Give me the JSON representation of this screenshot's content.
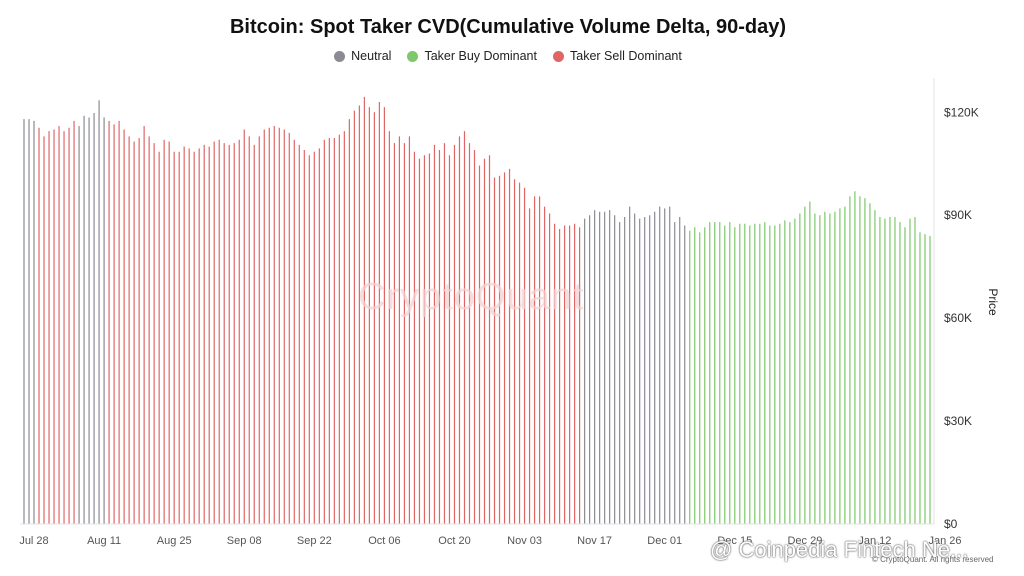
{
  "chart_data": {
    "type": "bar",
    "title": "Bitcoin: Spot Taker CVD(Cumulative Volume Delta, 90-day)",
    "ylabel": "Price",
    "ylim": [
      0,
      130000
    ],
    "y_ticks": [
      {
        "value": 0,
        "label": "$0"
      },
      {
        "value": 30000,
        "label": "$30K"
      },
      {
        "value": 60000,
        "label": "$60K"
      },
      {
        "value": 90000,
        "label": "$90K"
      },
      {
        "value": 120000,
        "label": "$120K"
      }
    ],
    "start_date": "2025-07-26",
    "x_ticks": [
      "Jul 28",
      "Aug 11",
      "Aug 25",
      "Sep 08",
      "Sep 22",
      "Oct 06",
      "Oct 20",
      "Nov 03",
      "Nov 17",
      "Dec 01",
      "Dec 15",
      "Dec 29",
      "Jan 12",
      "Jan 26"
    ],
    "x_tick_dates": [
      "2025-07-28",
      "2025-08-11",
      "2025-08-25",
      "2025-09-08",
      "2025-09-22",
      "2025-10-06",
      "2025-10-20",
      "2025-11-03",
      "2025-11-17",
      "2025-12-01",
      "2025-12-15",
      "2025-12-29",
      "2026-01-12",
      "2026-01-26"
    ],
    "legend": [
      {
        "name": "Neutral",
        "color": "#8b8b93"
      },
      {
        "name": "Taker Buy Dominant",
        "color": "#7cc86a"
      },
      {
        "name": "Taker Sell Dominant",
        "color": "#e06666"
      }
    ],
    "legend_position": "top-center",
    "grid": false,
    "segments": [
      {
        "state": "Neutral",
        "color": "#8b8b93",
        "values": [
          118000,
          118000,
          117500
        ]
      },
      {
        "state": "Taker Sell Dominant",
        "color": "#e06666",
        "values": [
          115500,
          113000,
          114500,
          115000,
          116000,
          114500,
          115500,
          117500
        ]
      },
      {
        "state": "Neutral",
        "color": "#8b8b93",
        "values": [
          116000,
          119000,
          118500,
          119800,
          123500,
          118500
        ]
      },
      {
        "state": "Taker Sell Dominant",
        "color": "#e06666",
        "values": [
          117500,
          116500,
          117500,
          115000,
          113000,
          111500,
          112500,
          116000,
          113000,
          111000,
          108500,
          112000,
          111500,
          108500,
          108500,
          110000,
          109500,
          108500,
          109500,
          110500,
          110000,
          111500,
          112000,
          111000,
          110500,
          111000,
          112000,
          115000,
          113000,
          110500,
          113000,
          115000,
          115500,
          116000,
          115500,
          115000,
          114000,
          112000,
          110500,
          109000,
          107500,
          108500,
          109500,
          112000,
          112500,
          112500,
          113500,
          114500,
          118000,
          120500,
          122000,
          124500,
          121500,
          120000,
          123000,
          121500,
          114500,
          111000,
          113000,
          111000,
          113000,
          108500,
          106500,
          107500,
          108000,
          110500,
          109000,
          111000,
          107500,
          110500,
          113000,
          114500,
          111000,
          109000,
          104500,
          106500,
          107500,
          101000,
          101500,
          102500,
          103500,
          100500,
          99500,
          98000,
          92000,
          95500,
          95500,
          92500,
          90500,
          87500,
          86000,
          87000,
          87000,
          87500,
          86500
        ]
      },
      {
        "state": "Neutral",
        "color": "#8b8b93",
        "values": [
          89000,
          90000,
          91500,
          91000,
          91000,
          91500,
          90000,
          88000,
          89500,
          92500,
          90500,
          89000,
          89500,
          90000,
          91000,
          92500,
          92000,
          92500,
          88000,
          89500,
          87000
        ]
      },
      {
        "state": "Taker Buy Dominant",
        "color": "#7cc86a",
        "values": [
          85500,
          86500,
          85000,
          86500,
          88000,
          88000,
          88000,
          87000,
          88000,
          86500,
          87500,
          87500,
          87000,
          87500,
          87500,
          88000,
          87000,
          87000,
          87500,
          88500,
          88000,
          89000,
          90500,
          92500,
          94000,
          90500,
          90000,
          91000,
          90500,
          91000,
          92000,
          92500,
          95500,
          97000,
          95500,
          95000,
          93500,
          91500,
          89500,
          89000,
          89500,
          89500,
          88000,
          86500,
          89000,
          89500,
          85000,
          84500,
          84000
        ]
      }
    ]
  },
  "watermark": "CryptoQuant",
  "copyright": "© CryptoQuant. All rights reserved",
  "overlay_credit": "@ Coinpedia Fintech Ne..."
}
